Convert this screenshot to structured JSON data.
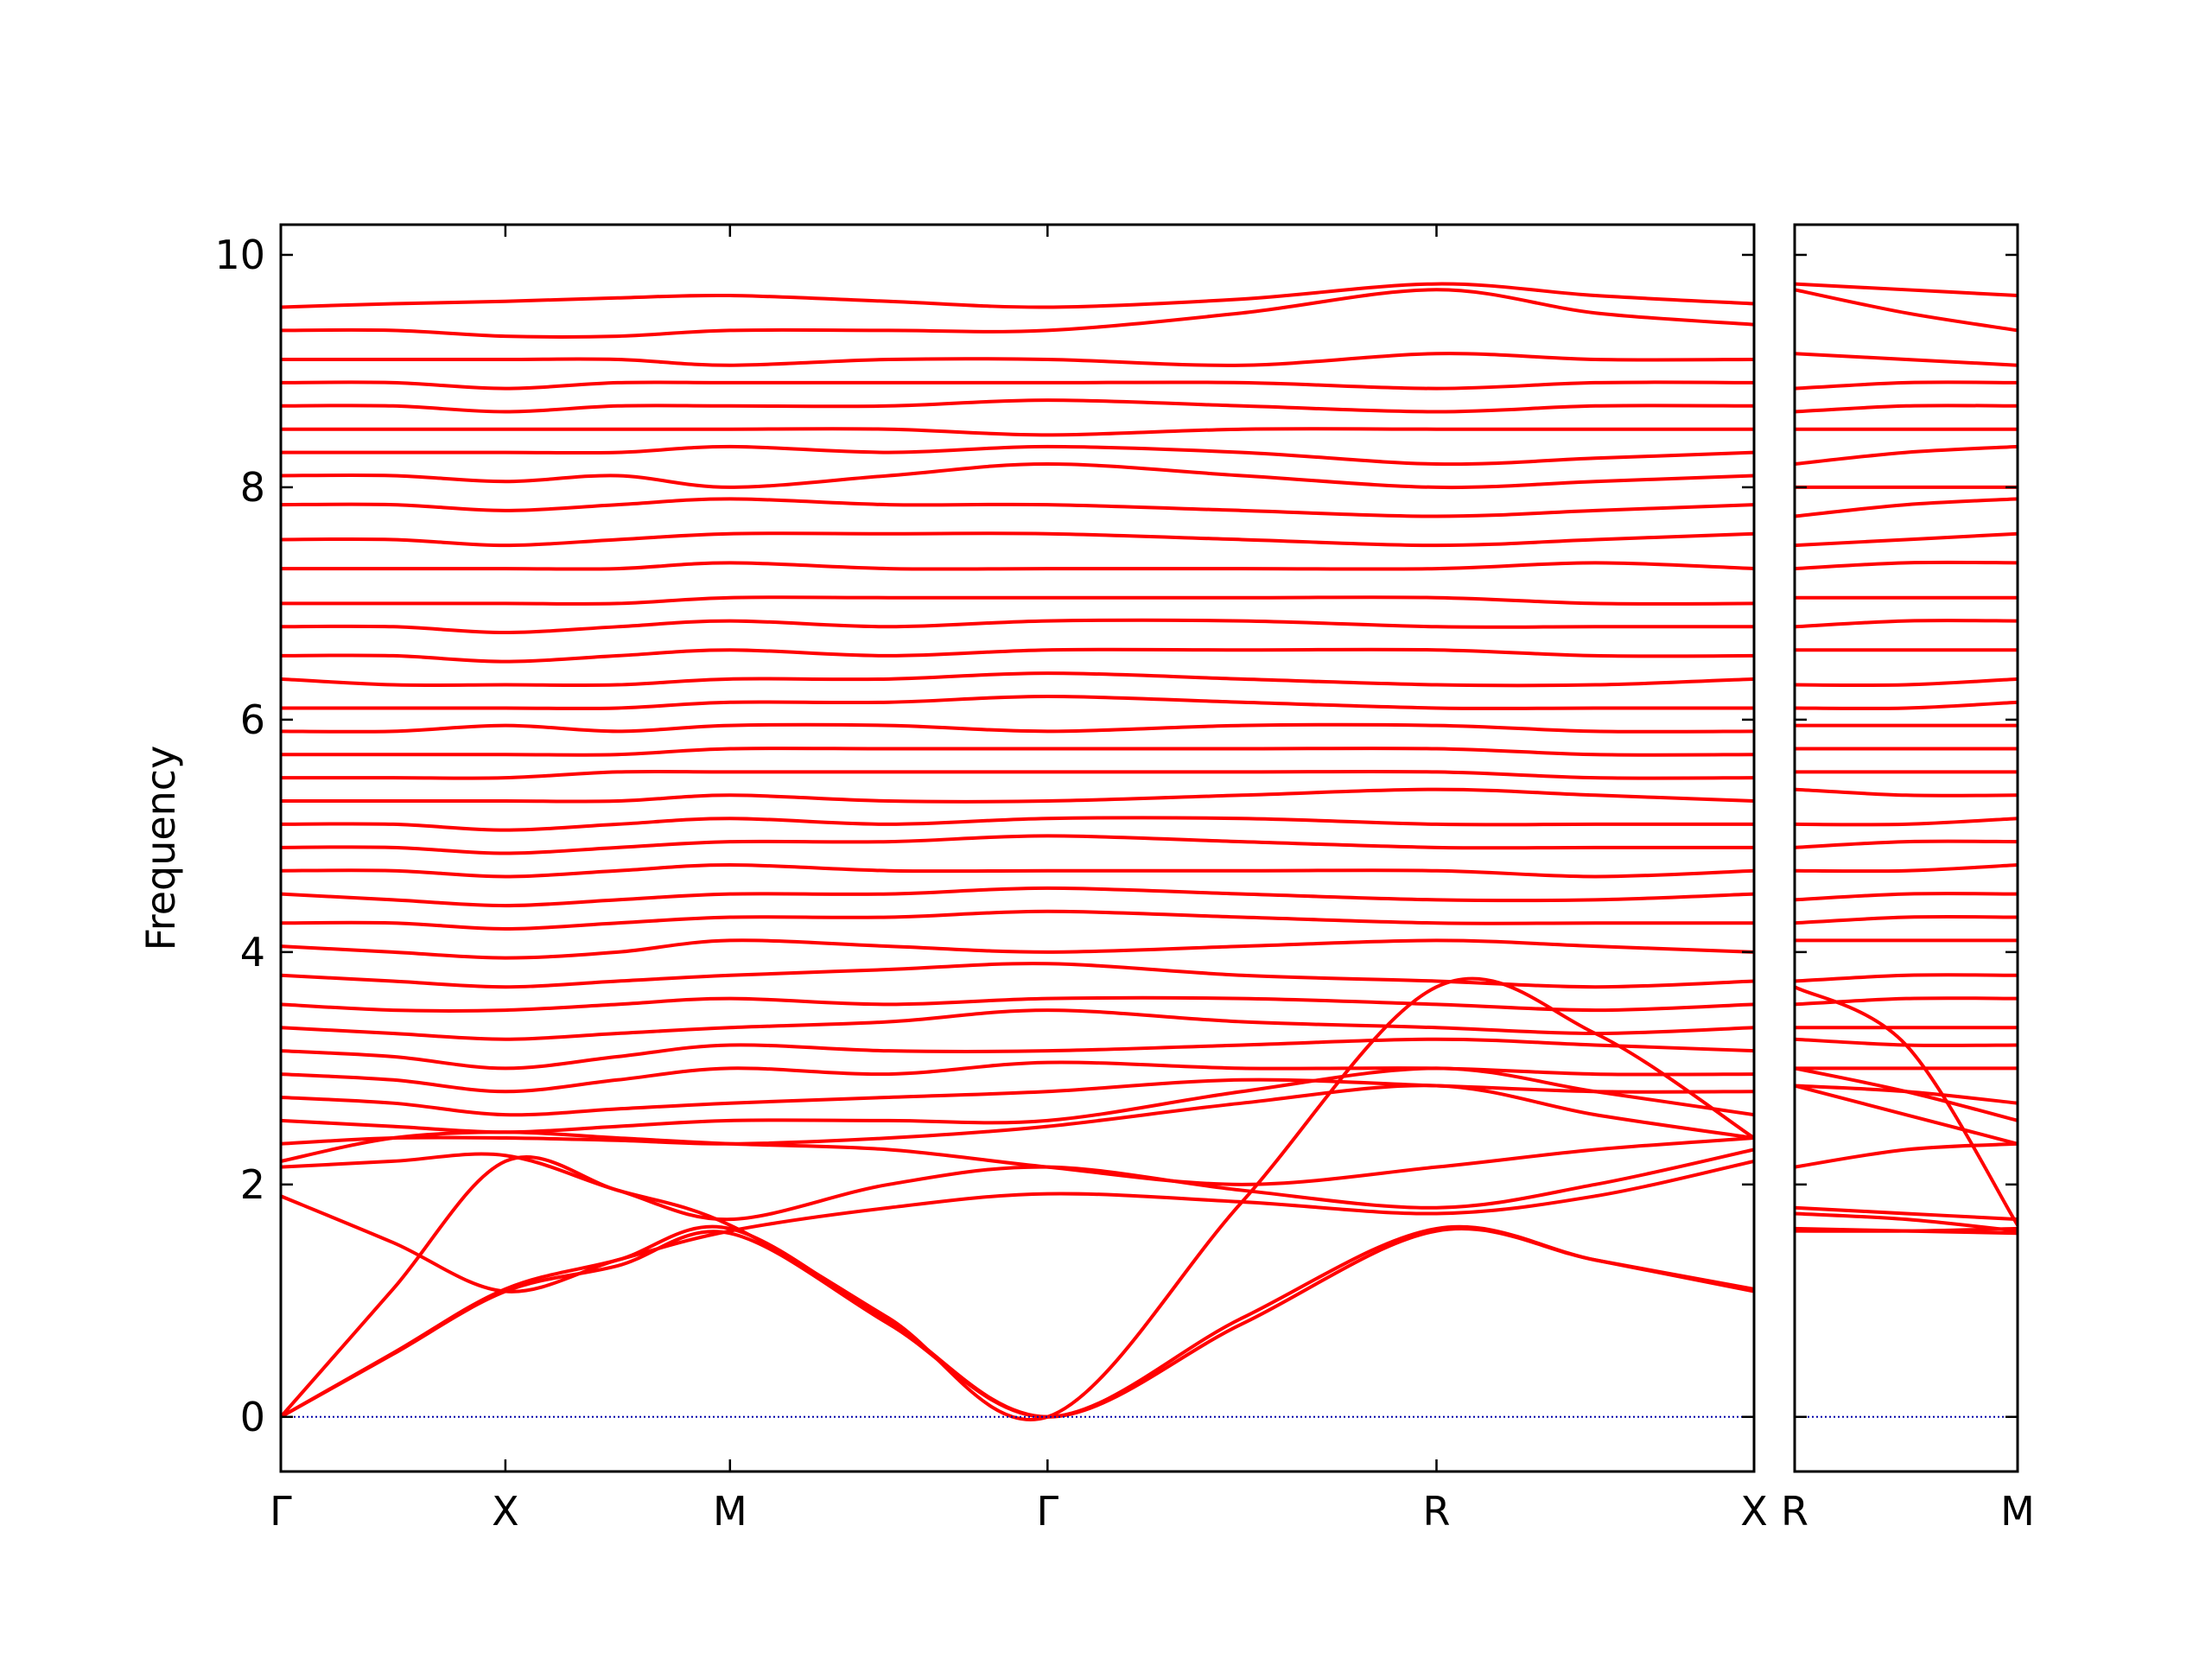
{
  "chart_data": [
    {
      "type": "line",
      "ylabel": "Frequency",
      "color": "#ff0000",
      "xlim": [
        0,
        6.56
      ],
      "ylim": [
        -0.47,
        10.26
      ],
      "x": [
        0,
        0.5,
        1,
        1.5,
        2,
        2.707,
        3.414,
        4.28,
        5.146,
        5.853,
        6.56
      ],
      "xticks": [
        {
          "value": 0,
          "label": "Γ"
        },
        {
          "value": 1,
          "label": "X"
        },
        {
          "value": 2,
          "label": "M"
        },
        {
          "value": 3.414,
          "label": "Γ"
        },
        {
          "value": 5.146,
          "label": "R"
        },
        {
          "value": 6.56,
          "label": "X"
        }
      ],
      "yticks": [
        0,
        2,
        4,
        6,
        8,
        10
      ],
      "ytick_labels": true,
      "zero_line": {
        "y": 0,
        "color": "#0000aa",
        "style": "dotted"
      },
      "series": [
        {
          "values": [
            0,
            0.54,
            1.08,
            1.3,
            1.58,
            0.8,
            0,
            0.85,
            1.62,
            1.35,
            1.08
          ]
        },
        {
          "values": [
            0,
            0.55,
            1.1,
            1.35,
            1.62,
            0.82,
            0,
            0.8,
            1.6,
            1.35,
            1.1
          ]
        },
        {
          "values": [
            0,
            1.1,
            2.2,
            1.95,
            1.65,
            0.85,
            0,
            1.85,
            3.7,
            3.3,
            2.4
          ]
        },
        {
          "values": [
            1.9,
            1.5,
            1.08,
            1.35,
            1.6,
            1.8,
            1.92,
            1.85,
            1.75,
            1.9,
            2.2
          ]
        },
        {
          "values": [
            2.15,
            2.2,
            2.25,
            1.95,
            1.7,
            2.0,
            2.15,
            1.95,
            1.8,
            2.0,
            2.3
          ]
        },
        {
          "values": [
            2.2,
            2.4,
            2.45,
            2.4,
            2.35,
            2.3,
            2.15,
            2.0,
            2.15,
            2.3,
            2.4
          ]
        },
        {
          "values": [
            2.35,
            2.4,
            2.4,
            2.38,
            2.35,
            2.4,
            2.5,
            2.7,
            2.85,
            2.6,
            2.4
          ]
        },
        {
          "values": [
            2.55,
            2.5,
            2.45,
            2.5,
            2.55,
            2.55,
            2.55,
            2.8,
            3.0,
            2.8,
            2.6
          ]
        },
        {
          "values": [
            2.75,
            2.7,
            2.6,
            2.65,
            2.7,
            2.75,
            2.8,
            2.9,
            2.85,
            2.8,
            2.8
          ]
        },
        {
          "values": [
            2.95,
            2.9,
            2.8,
            2.9,
            3.0,
            2.95,
            3.05,
            3.0,
            3.0,
            2.95,
            2.95
          ]
        },
        {
          "values": [
            3.15,
            3.1,
            3.0,
            3.1,
            3.2,
            3.15,
            3.15,
            3.2,
            3.25,
            3.2,
            3.15
          ]
        },
        {
          "values": [
            3.35,
            3.3,
            3.25,
            3.3,
            3.35,
            3.4,
            3.5,
            3.4,
            3.35,
            3.3,
            3.35
          ]
        },
        {
          "values": [
            3.55,
            3.5,
            3.5,
            3.55,
            3.6,
            3.55,
            3.6,
            3.6,
            3.55,
            3.5,
            3.55
          ]
        },
        {
          "values": [
            3.8,
            3.75,
            3.7,
            3.75,
            3.8,
            3.85,
            3.9,
            3.8,
            3.75,
            3.7,
            3.75
          ]
        },
        {
          "values": [
            4.05,
            4.0,
            3.95,
            4.0,
            4.1,
            4.05,
            4.0,
            4.05,
            4.1,
            4.05,
            4.0
          ]
        },
        {
          "values": [
            4.25,
            4.25,
            4.2,
            4.25,
            4.3,
            4.3,
            4.35,
            4.3,
            4.25,
            4.25,
            4.25
          ]
        },
        {
          "values": [
            4.5,
            4.45,
            4.4,
            4.45,
            4.5,
            4.5,
            4.55,
            4.5,
            4.45,
            4.45,
            4.5
          ]
        },
        {
          "values": [
            4.7,
            4.7,
            4.65,
            4.7,
            4.75,
            4.7,
            4.7,
            4.7,
            4.7,
            4.65,
            4.7
          ]
        },
        {
          "values": [
            4.9,
            4.9,
            4.85,
            4.9,
            4.95,
            4.95,
            5.0,
            4.95,
            4.9,
            4.9,
            4.9
          ]
        },
        {
          "values": [
            5.1,
            5.1,
            5.05,
            5.1,
            5.15,
            5.1,
            5.15,
            5.15,
            5.1,
            5.1,
            5.1
          ]
        },
        {
          "values": [
            5.3,
            5.3,
            5.3,
            5.3,
            5.35,
            5.3,
            5.3,
            5.35,
            5.4,
            5.35,
            5.3
          ]
        },
        {
          "values": [
            5.5,
            5.5,
            5.5,
            5.55,
            5.55,
            5.55,
            5.55,
            5.55,
            5.55,
            5.5,
            5.5
          ]
        },
        {
          "values": [
            5.7,
            5.7,
            5.7,
            5.7,
            5.75,
            5.75,
            5.75,
            5.75,
            5.75,
            5.7,
            5.7
          ]
        },
        {
          "values": [
            5.9,
            5.9,
            5.95,
            5.9,
            5.95,
            5.95,
            5.9,
            5.95,
            5.95,
            5.9,
            5.9
          ]
        },
        {
          "values": [
            6.1,
            6.1,
            6.1,
            6.1,
            6.15,
            6.15,
            6.2,
            6.15,
            6.1,
            6.1,
            6.1
          ]
        },
        {
          "values": [
            6.35,
            6.3,
            6.3,
            6.3,
            6.35,
            6.35,
            6.4,
            6.35,
            6.3,
            6.3,
            6.35
          ]
        },
        {
          "values": [
            6.55,
            6.55,
            6.5,
            6.55,
            6.6,
            6.55,
            6.6,
            6.6,
            6.6,
            6.55,
            6.55
          ]
        },
        {
          "values": [
            6.8,
            6.8,
            6.75,
            6.8,
            6.85,
            6.8,
            6.85,
            6.85,
            6.8,
            6.8,
            6.8
          ]
        },
        {
          "values": [
            7.0,
            7.0,
            7.0,
            7.0,
            7.05,
            7.05,
            7.05,
            7.05,
            7.05,
            7.0,
            7.0
          ]
        },
        {
          "values": [
            7.3,
            7.3,
            7.3,
            7.3,
            7.35,
            7.3,
            7.3,
            7.3,
            7.3,
            7.35,
            7.3
          ]
        },
        {
          "values": [
            7.55,
            7.55,
            7.5,
            7.55,
            7.6,
            7.6,
            7.6,
            7.55,
            7.5,
            7.55,
            7.6
          ]
        },
        {
          "values": [
            7.85,
            7.85,
            7.8,
            7.85,
            7.9,
            7.85,
            7.85,
            7.8,
            7.75,
            7.8,
            7.85
          ]
        },
        {
          "values": [
            8.1,
            8.1,
            8.05,
            8.1,
            8.0,
            8.1,
            8.2,
            8.1,
            8.0,
            8.05,
            8.1
          ]
        },
        {
          "values": [
            8.3,
            8.3,
            8.3,
            8.3,
            8.35,
            8.3,
            8.35,
            8.3,
            8.2,
            8.25,
            8.3
          ]
        },
        {
          "values": [
            8.5,
            8.5,
            8.5,
            8.5,
            8.5,
            8.5,
            8.45,
            8.5,
            8.5,
            8.5,
            8.5
          ]
        },
        {
          "values": [
            8.7,
            8.7,
            8.65,
            8.7,
            8.7,
            8.7,
            8.75,
            8.7,
            8.65,
            8.7,
            8.7
          ]
        },
        {
          "values": [
            8.9,
            8.9,
            8.85,
            8.9,
            8.9,
            8.9,
            8.9,
            8.9,
            8.85,
            8.9,
            8.9
          ]
        },
        {
          "values": [
            9.1,
            9.1,
            9.1,
            9.1,
            9.05,
            9.1,
            9.1,
            9.05,
            9.15,
            9.1,
            9.1
          ]
        },
        {
          "values": [
            9.35,
            9.35,
            9.3,
            9.3,
            9.35,
            9.35,
            9.35,
            9.5,
            9.7,
            9.5,
            9.4
          ]
        },
        {
          "values": [
            9.55,
            9.58,
            9.6,
            9.63,
            9.65,
            9.6,
            9.55,
            9.62,
            9.75,
            9.65,
            9.58
          ]
        }
      ]
    },
    {
      "type": "line",
      "color": "#ff0000",
      "xlim": [
        0,
        1.414
      ],
      "ylim": [
        -0.47,
        10.26
      ],
      "x": [
        0,
        0.707,
        1.414
      ],
      "xticks": [
        {
          "value": 0,
          "label": "R"
        },
        {
          "value": 1.414,
          "label": "M"
        }
      ],
      "yticks": [
        0,
        2,
        4,
        6,
        8,
        10
      ],
      "ytick_labels": false,
      "zero_line": {
        "y": 0,
        "color": "#0000aa",
        "style": "dotted"
      },
      "series": [
        {
          "values": [
            1.62,
            1.6,
            1.58
          ]
        },
        {
          "values": [
            1.6,
            1.6,
            1.62
          ]
        },
        {
          "values": [
            3.7,
            3.2,
            1.65
          ]
        },
        {
          "values": [
            1.75,
            1.7,
            1.6
          ]
        },
        {
          "values": [
            1.8,
            1.75,
            1.7
          ]
        },
        {
          "values": [
            2.15,
            2.3,
            2.35
          ]
        },
        {
          "values": [
            2.85,
            2.6,
            2.35
          ]
        },
        {
          "values": [
            3.0,
            2.8,
            2.55
          ]
        },
        {
          "values": [
            2.85,
            2.8,
            2.7
          ]
        },
        {
          "values": [
            3.0,
            3.0,
            3.0
          ]
        },
        {
          "values": [
            3.25,
            3.2,
            3.2
          ]
        },
        {
          "values": [
            3.35,
            3.35,
            3.35
          ]
        },
        {
          "values": [
            3.55,
            3.6,
            3.6
          ]
        },
        {
          "values": [
            3.75,
            3.8,
            3.8
          ]
        },
        {
          "values": [
            4.1,
            4.1,
            4.1
          ]
        },
        {
          "values": [
            4.25,
            4.3,
            4.3
          ]
        },
        {
          "values": [
            4.45,
            4.5,
            4.5
          ]
        },
        {
          "values": [
            4.7,
            4.7,
            4.75
          ]
        },
        {
          "values": [
            4.9,
            4.95,
            4.95
          ]
        },
        {
          "values": [
            5.1,
            5.1,
            5.15
          ]
        },
        {
          "values": [
            5.4,
            5.35,
            5.35
          ]
        },
        {
          "values": [
            5.55,
            5.55,
            5.55
          ]
        },
        {
          "values": [
            5.75,
            5.75,
            5.75
          ]
        },
        {
          "values": [
            5.95,
            5.95,
            5.95
          ]
        },
        {
          "values": [
            6.1,
            6.1,
            6.15
          ]
        },
        {
          "values": [
            6.3,
            6.3,
            6.35
          ]
        },
        {
          "values": [
            6.6,
            6.6,
            6.6
          ]
        },
        {
          "values": [
            6.8,
            6.85,
            6.85
          ]
        },
        {
          "values": [
            7.05,
            7.05,
            7.05
          ]
        },
        {
          "values": [
            7.3,
            7.35,
            7.35
          ]
        },
        {
          "values": [
            7.5,
            7.55,
            7.6
          ]
        },
        {
          "values": [
            7.75,
            7.85,
            7.9
          ]
        },
        {
          "values": [
            8.0,
            8.0,
            8.0
          ]
        },
        {
          "values": [
            8.2,
            8.3,
            8.35
          ]
        },
        {
          "values": [
            8.5,
            8.5,
            8.5
          ]
        },
        {
          "values": [
            8.65,
            8.7,
            8.7
          ]
        },
        {
          "values": [
            8.85,
            8.9,
            8.9
          ]
        },
        {
          "values": [
            9.15,
            9.1,
            9.05
          ]
        },
        {
          "values": [
            9.7,
            9.5,
            9.35
          ]
        },
        {
          "values": [
            9.75,
            9.7,
            9.65
          ]
        }
      ]
    }
  ]
}
